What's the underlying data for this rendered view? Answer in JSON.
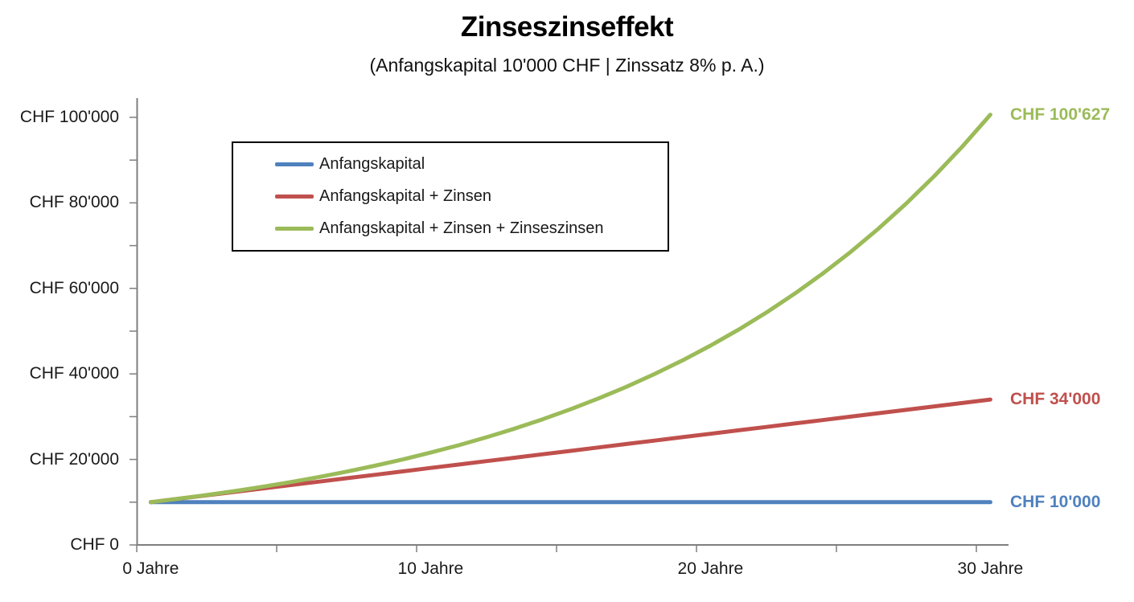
{
  "header": {
    "title": "Zinseszinseffekt",
    "subtitle": "(Anfangskapital 10'000 CHF | Zinssatz 8% p. A.)"
  },
  "chart_data": {
    "type": "line",
    "title": "Zinseszinseffekt",
    "subtitle": "(Anfangskapital 10'000 CHF | Zinssatz 8% p. A.)",
    "xlabel": "Jahre",
    "ylabel": "CHF",
    "grid": false,
    "background": "#ffffff",
    "axis_color": "#7f7f7f",
    "text_color": "#1a1a1a",
    "x": [
      0,
      1,
      2,
      3,
      4,
      5,
      6,
      7,
      8,
      9,
      10,
      11,
      12,
      13,
      14,
      15,
      16,
      17,
      18,
      19,
      20,
      21,
      22,
      23,
      24,
      25,
      26,
      27,
      28,
      29,
      30
    ],
    "series": [
      {
        "name": "Anfangskapital",
        "color": "#4F81BD",
        "values": [
          10000,
          10000,
          10000,
          10000,
          10000,
          10000,
          10000,
          10000,
          10000,
          10000,
          10000,
          10000,
          10000,
          10000,
          10000,
          10000,
          10000,
          10000,
          10000,
          10000,
          10000,
          10000,
          10000,
          10000,
          10000,
          10000,
          10000,
          10000,
          10000,
          10000,
          10000
        ]
      },
      {
        "name": "Anfangskapital + Zinsen",
        "color": "#C0504D",
        "values": [
          10000,
          10800,
          11600,
          12400,
          13200,
          14000,
          14800,
          15600,
          16400,
          17200,
          18000,
          18800,
          19600,
          20400,
          21200,
          22000,
          22800,
          23600,
          24400,
          25200,
          26000,
          26800,
          27600,
          28400,
          29200,
          30000,
          30800,
          31600,
          32400,
          33200,
          34000
        ]
      },
      {
        "name": "Anfangskapital + Zinsen + Zinseszinsen",
        "color": "#9BBB59",
        "values": [
          10000,
          10800,
          11664,
          12597,
          13605,
          14693,
          15869,
          17138,
          18509,
          19990,
          21589,
          23316,
          25182,
          27196,
          29372,
          31722,
          34259,
          37000,
          39960,
          43157,
          46610,
          50338,
          54365,
          58715,
          63412,
          68485,
          73964,
          79881,
          86271,
          93173,
          100627
        ]
      }
    ],
    "x_ticks": {
      "tick_years": [
        0,
        5,
        10,
        15,
        20,
        25,
        30
      ],
      "labeled_years": [
        0,
        10,
        20,
        30
      ],
      "labels": [
        "0 Jahre",
        "10 Jahre",
        "20 Jahre",
        "30 Jahre"
      ]
    },
    "y_ticks": {
      "tick_values": [
        0,
        10000,
        20000,
        30000,
        40000,
        50000,
        60000,
        70000,
        80000,
        90000,
        100000
      ],
      "labeled_values": [
        0,
        20000,
        40000,
        60000,
        80000,
        100000
      ],
      "labels": [
        "CHF 0",
        "CHF 20'000",
        "CHF 40'000",
        "CHF 60'000",
        "CHF 80'000",
        "CHF 100'000"
      ]
    },
    "xlim": [
      0,
      31
    ],
    "ylim": [
      0,
      104500
    ],
    "legend": {
      "position": "inside-top-left",
      "border_color": "#000000",
      "items": [
        "Anfangskapital",
        "Anfangskapital + Zinsen",
        "Anfangskapital + Zinsen + Zinseszinsen"
      ]
    },
    "end_labels": [
      {
        "series": "Anfangskapital + Zinsen + Zinseszinsen",
        "text": "CHF 100'627",
        "value": 100627,
        "color": "#9BBB59"
      },
      {
        "series": "Anfangskapital + Zinsen",
        "text": "CHF 34'000",
        "value": 34000,
        "color": "#C0504D"
      },
      {
        "series": "Anfangskapital",
        "text": "CHF 10'000",
        "value": 10000,
        "color": "#4F81BD"
      }
    ]
  }
}
